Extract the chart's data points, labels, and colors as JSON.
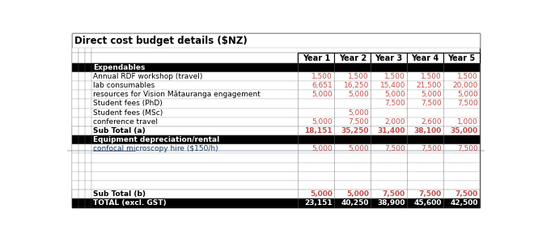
{
  "title": "Direct cost budget details ($NZ)",
  "col_headers": [
    "Year 1",
    "Year 2",
    "Year 3",
    "Year 4",
    "Year 5"
  ],
  "rows": [
    {
      "label": "Expendables",
      "type": "section_header",
      "values": [
        "",
        "",
        "",
        "",
        ""
      ]
    },
    {
      "label": "Annual RDF workshop (travel)",
      "type": "data",
      "values": [
        "1,500",
        "1,500",
        "1,500",
        "1,500",
        "1,500"
      ]
    },
    {
      "label": "lab consumables",
      "type": "data",
      "values": [
        "6,651",
        "16,250",
        "15,400",
        "21,500",
        "20,000"
      ]
    },
    {
      "label": "resources for Vision Mātauranga engagement",
      "type": "data",
      "values": [
        "5,000",
        "5,000",
        "5,000",
        "5,000",
        "5,000"
      ]
    },
    {
      "label": "Student fees (PhD)",
      "type": "data",
      "values": [
        "",
        "",
        "7,500",
        "7,500",
        "7,500"
      ]
    },
    {
      "label": "Student fees (MSc)",
      "type": "data",
      "values": [
        "",
        "5,000",
        "",
        "",
        ""
      ]
    },
    {
      "label": "conference travel",
      "type": "data",
      "values": [
        "5,000",
        "7,500",
        "2,000",
        "2,600",
        "1,000"
      ]
    },
    {
      "label": "Sub Total (a)",
      "type": "subtotal",
      "values": [
        "18,151",
        "35,250",
        "31,400",
        "38,100",
        "35,000"
      ]
    },
    {
      "label": "Equipment depreciation/rental",
      "type": "section_header",
      "values": [
        "",
        "",
        "",
        "",
        ""
      ]
    },
    {
      "label": "confocal microscopy hire ($150/h)",
      "type": "data_link",
      "values": [
        "5,000",
        "5,000",
        "7,500",
        "7,500",
        "7,500"
      ]
    },
    {
      "label": "",
      "type": "empty",
      "values": [
        "",
        "",
        "",
        "",
        ""
      ]
    },
    {
      "label": "",
      "type": "empty",
      "values": [
        "",
        "",
        "",
        "",
        ""
      ]
    },
    {
      "label": "",
      "type": "empty",
      "values": [
        "",
        "",
        "",
        "",
        ""
      ]
    },
    {
      "label": "",
      "type": "empty",
      "values": [
        "",
        "",
        "",
        "",
        ""
      ]
    },
    {
      "label": "Sub Total (b)",
      "type": "subtotal",
      "values": [
        "5,000",
        "5,000",
        "7,500",
        "7,500",
        "7,500"
      ]
    },
    {
      "label": "TOTAL (excl. GST)",
      "type": "total",
      "values": [
        "23,151",
        "40,250",
        "38,900",
        "45,600",
        "42,500"
      ]
    }
  ],
  "number_color": "#c0504d",
  "link_color": "#17375e",
  "section_bg": "#000000",
  "section_fg": "#ffffff",
  "total_bg": "#000000",
  "total_fg": "#ffffff",
  "subtotal_fg": "#000000",
  "data_fg": "#000000",
  "border_color": "#000000",
  "grid_color": "#aaaaaa",
  "title_fontsize": 8.5,
  "header_fontsize": 7.0,
  "data_fontsize": 6.5
}
